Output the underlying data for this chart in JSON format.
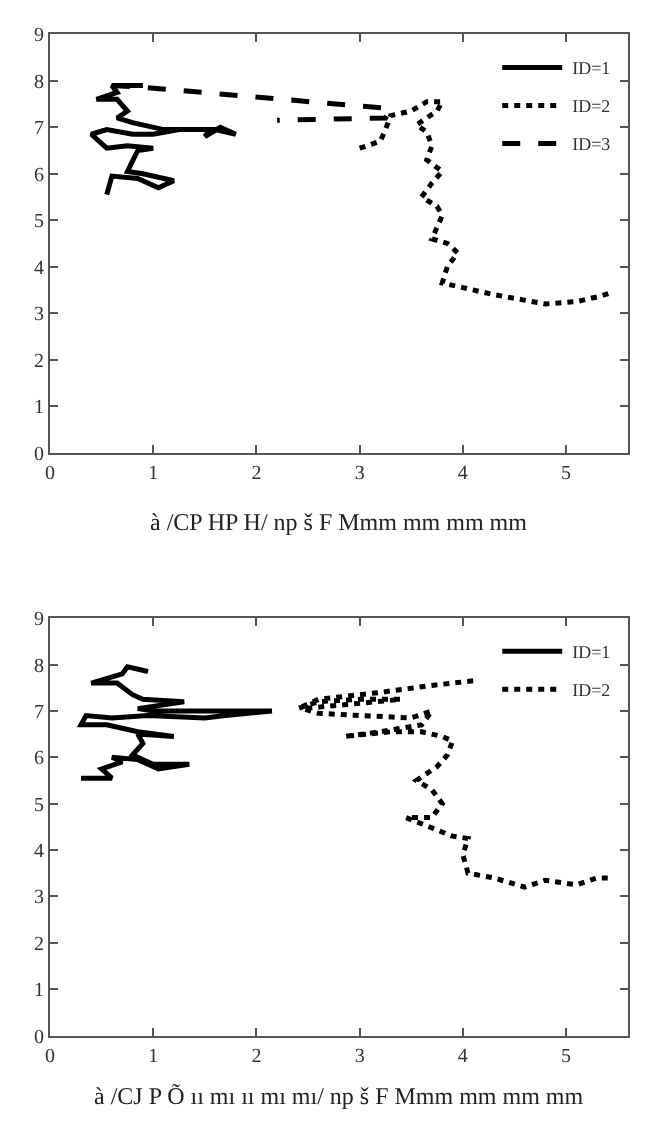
{
  "chart_data": [
    {
      "type": "line",
      "annotations": [
        "à /CP HP H/ np š F Mmm mm mm mm"
      ],
      "xlim": [
        0,
        5.6
      ],
      "ylim": [
        0,
        9
      ],
      "xticks": [
        0,
        1,
        2,
        3,
        4,
        5
      ],
      "yticks": [
        0,
        1,
        2,
        3,
        4,
        5,
        6,
        7,
        8,
        9
      ],
      "legend": "top right",
      "marker": "none",
      "series": [
        {
          "name": "ID=1",
          "color": "#000000",
          "line_style": "solid",
          "x": [
            0.55,
            0.6,
            0.85,
            1.05,
            1.2,
            0.9,
            0.75,
            0.85,
            1.0,
            0.75,
            0.55,
            0.4,
            0.55,
            0.8,
            1.0,
            1.25,
            1.55,
            1.5,
            1.65,
            1.8,
            1.6,
            1.1,
            0.8,
            0.65,
            0.75,
            0.65,
            0.45,
            0.65,
            0.6,
            0.9
          ],
          "values": [
            5.55,
            5.95,
            5.9,
            5.7,
            5.85,
            6.0,
            6.05,
            6.5,
            6.55,
            6.6,
            6.55,
            6.85,
            6.95,
            6.85,
            6.85,
            6.95,
            6.95,
            6.8,
            7.0,
            6.85,
            6.95,
            6.95,
            7.1,
            7.2,
            7.35,
            7.6,
            7.6,
            7.75,
            7.9,
            7.9
          ]
        },
        {
          "name": "ID=2",
          "color": "#000000",
          "line_style": "dotted",
          "x": [
            3.0,
            3.2,
            3.25,
            3.3,
            3.5,
            3.65,
            3.8,
            3.75,
            3.55,
            3.65,
            3.7,
            3.65,
            3.8,
            3.7,
            3.6,
            3.75,
            3.8,
            3.7,
            3.85,
            3.95,
            3.85,
            3.8,
            4.0,
            4.3,
            4.8,
            5.1,
            5.3,
            5.45
          ],
          "values": [
            6.55,
            6.7,
            6.95,
            7.25,
            7.35,
            7.55,
            7.55,
            7.35,
            7.05,
            6.9,
            6.6,
            6.3,
            6.05,
            5.8,
            5.5,
            5.3,
            5.1,
            4.6,
            4.5,
            4.3,
            4.0,
            3.65,
            3.55,
            3.4,
            3.2,
            3.25,
            3.35,
            3.45
          ]
        },
        {
          "name": "ID=3",
          "color": "#000000",
          "line_style": "dashed",
          "x": [
            0.6,
            0.95,
            3.3,
            3.25,
            2.2
          ],
          "values": [
            7.9,
            7.85,
            7.4,
            7.2,
            7.15
          ]
        }
      ]
    },
    {
      "type": "line",
      "annotations": [
        "à /CJ P Õ ıı mı ıı mı mı/ np š F Mmm mm mm mm"
      ],
      "xlim": [
        0,
        5.6
      ],
      "ylim": [
        0,
        9
      ],
      "xticks": [
        0,
        1,
        2,
        3,
        4,
        5
      ],
      "yticks": [
        0,
        1,
        2,
        3,
        4,
        5,
        6,
        7,
        8,
        9
      ],
      "legend": "top right",
      "marker": "none",
      "series": [
        {
          "name": "ID=1",
          "color": "#000000",
          "line_style": "solid",
          "x": [
            0.3,
            0.6,
            0.5,
            0.7,
            0.6,
            0.85,
            1.05,
            1.35,
            1.0,
            0.8,
            0.9,
            0.85,
            1.2,
            0.85,
            0.55,
            0.3,
            0.35,
            0.6,
            0.95,
            1.5,
            1.7,
            2.15,
            1.0,
            0.85,
            1.3,
            0.9,
            0.8,
            0.65,
            0.4,
            0.7,
            0.75,
            0.95
          ],
          "values": [
            5.55,
            5.55,
            5.75,
            5.9,
            6.0,
            5.95,
            5.75,
            5.85,
            5.85,
            6.05,
            6.3,
            6.5,
            6.45,
            6.55,
            6.7,
            6.7,
            6.9,
            6.85,
            6.9,
            6.85,
            6.9,
            7.0,
            7.0,
            7.05,
            7.2,
            7.25,
            7.35,
            7.6,
            7.6,
            7.8,
            7.95,
            7.85
          ]
        },
        {
          "name": "ID=2",
          "color": "#000000",
          "line_style": "dotted",
          "x": [
            4.1,
            3.7,
            3.2,
            2.6,
            2.4,
            2.6,
            3.0,
            3.4,
            2.45,
            2.6,
            3.0,
            3.5,
            3.7,
            3.6,
            3.2,
            2.85,
            3.3,
            3.6,
            3.8,
            3.9,
            3.85,
            3.75,
            3.55,
            3.7,
            3.8,
            3.7,
            3.45,
            3.9,
            4.05,
            4.0,
            4.05,
            4.3,
            4.6,
            4.8,
            5.1,
            5.3,
            5.45
          ],
          "values": [
            7.65,
            7.55,
            7.4,
            7.25,
            7.05,
            7.2,
            7.25,
            7.25,
            7.05,
            6.95,
            6.9,
            6.85,
            7.0,
            6.7,
            6.55,
            6.45,
            6.55,
            6.55,
            6.45,
            6.35,
            6.05,
            5.8,
            5.5,
            5.3,
            5.0,
            4.7,
            4.7,
            4.3,
            4.25,
            3.9,
            3.5,
            3.4,
            3.2,
            3.35,
            3.25,
            3.4,
            3.4
          ]
        }
      ]
    }
  ]
}
